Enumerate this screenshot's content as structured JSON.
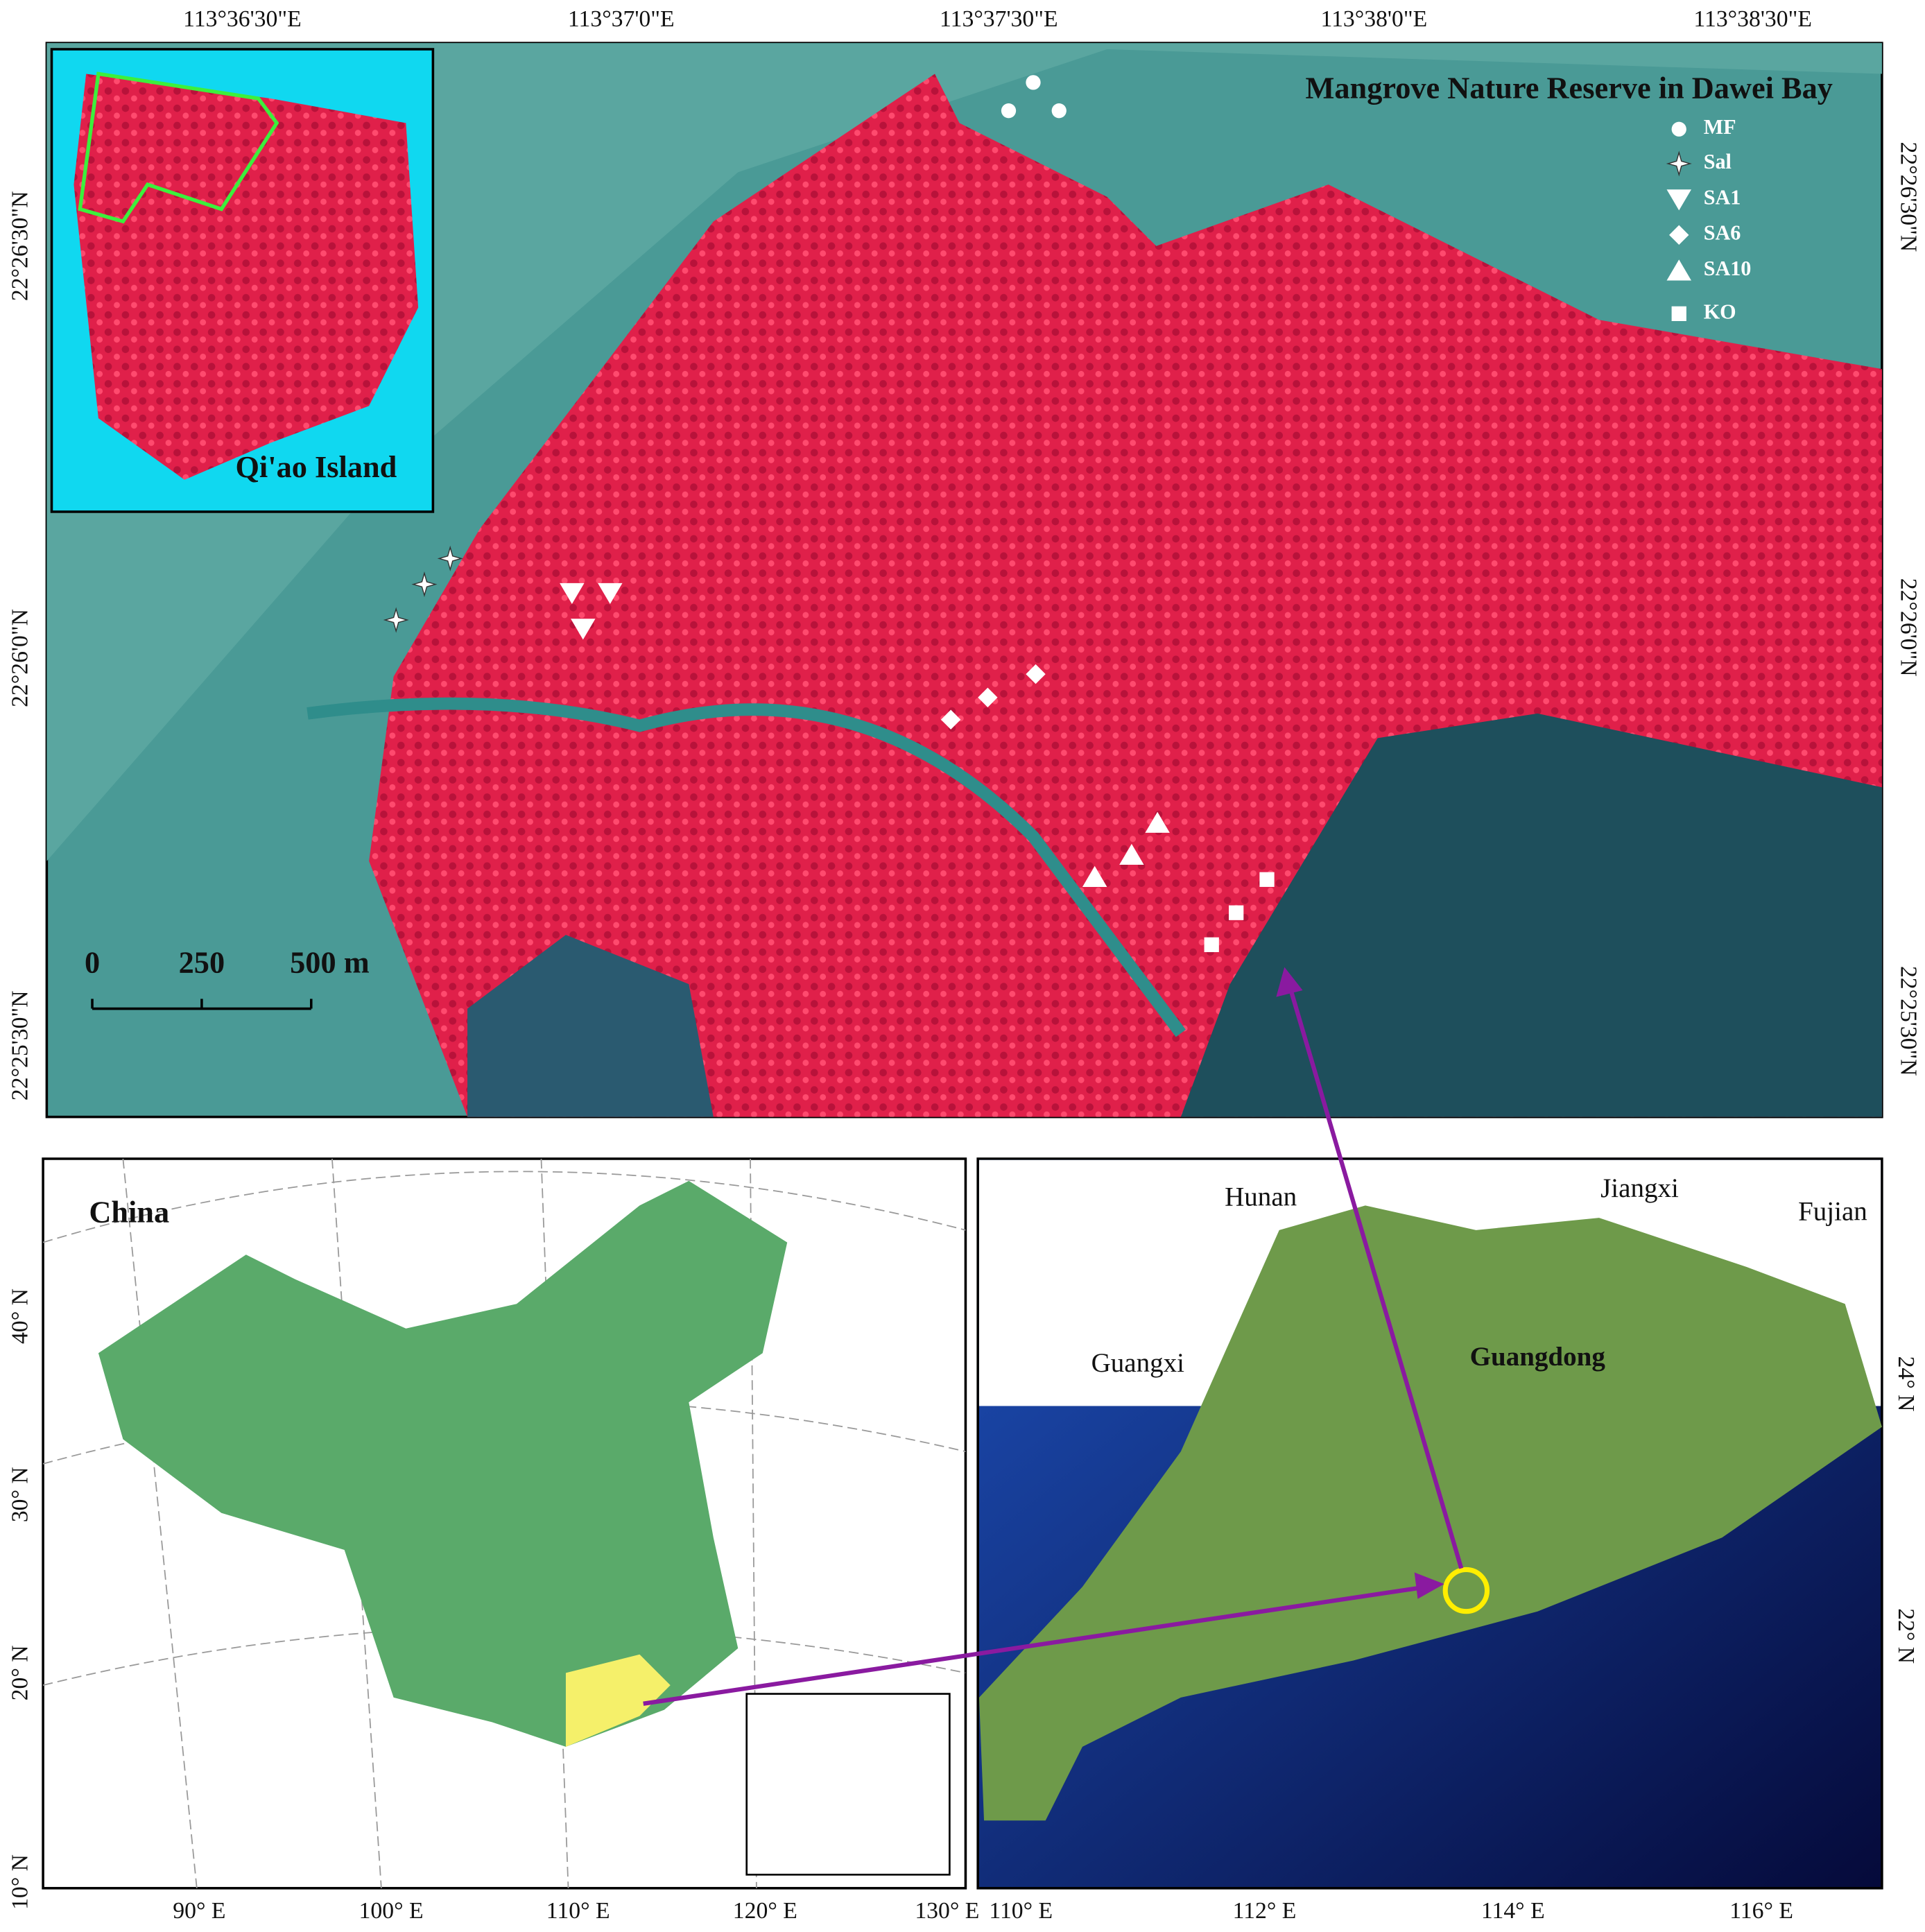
{
  "main_map": {
    "title": "Mangrove Nature Reserve in Dawei Bay",
    "top_labels": [
      "113°36'30\"E",
      "113°37'0\"E",
      "113°37'30\"E",
      "113°38'0\"E",
      "113°38'30\"E"
    ],
    "left_labels": [
      "22°26'30\"N",
      "22°26'0\"N",
      "22°25'30\"N"
    ],
    "right_labels": [
      "22°26'30\"N",
      "22°26'0\"N",
      "22°25'30\"N"
    ],
    "legend": [
      "MF",
      "Sal",
      "SA1",
      "SA6",
      "SA10",
      "KO"
    ],
    "scale_labels": [
      "0",
      "250",
      "500 m"
    ],
    "inset_label": "Qi'ao Island"
  },
  "china_map": {
    "title": "China",
    "lat_labels": [
      "40° N",
      "30° N",
      "20° N",
      "10° N"
    ],
    "lon_labels": [
      "90° E",
      "100° E",
      "110° E",
      "120° E",
      "130° E"
    ]
  },
  "guangdong_map": {
    "provinces": [
      "Hunan",
      "Jiangxi",
      "Fujian",
      "Guangxi",
      "Guangdong"
    ],
    "lon_labels": [
      "110° E",
      "112° E",
      "114° E",
      "116° E"
    ],
    "lat_labels": [
      "24° N",
      "22° N"
    ]
  }
}
